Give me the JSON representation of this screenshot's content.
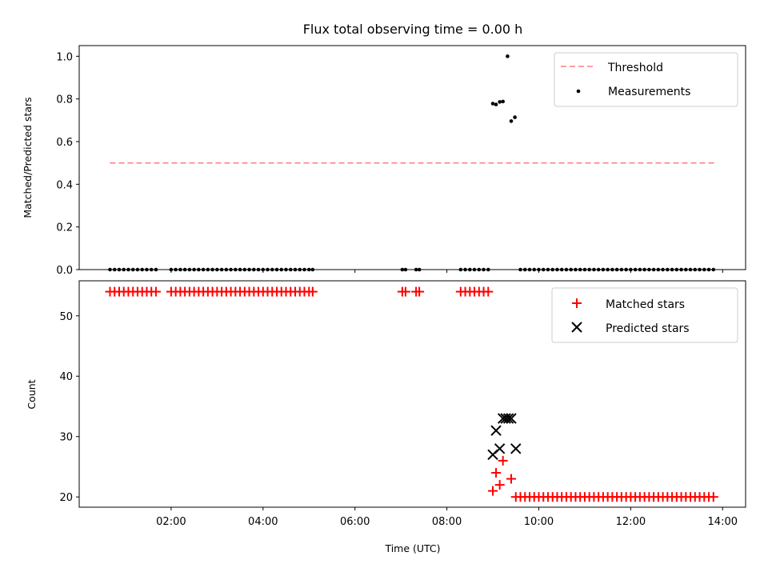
{
  "figure": {
    "title": "Flux total observing time = 0.00 h"
  },
  "chart_data": [
    {
      "type": "scatter",
      "ylabel": "Matched/Predicted stars",
      "xlim": [
        0.0,
        14.5
      ],
      "ylim": [
        0.0,
        1.05
      ],
      "yticks": [
        0.0,
        0.2,
        0.4,
        0.6,
        0.8,
        1.0
      ],
      "yticklabels": [
        "0.0",
        "0.2",
        "0.4",
        "0.6",
        "0.8",
        "1.0"
      ],
      "grid": false,
      "legend": {
        "position": "top-right",
        "entries": [
          "Threshold",
          "Measurements"
        ]
      },
      "threshold": {
        "name": "Threshold",
        "value": 0.5,
        "x_range": [
          0.67,
          13.83
        ],
        "color": "#ff8080",
        "style": "dashed"
      },
      "series": [
        {
          "name": "Measurements",
          "marker": "dot",
          "color": "#000000",
          "points": [
            [
              0.67,
              0
            ],
            [
              0.77,
              0
            ],
            [
              0.87,
              0
            ],
            [
              0.97,
              0
            ],
            [
              1.07,
              0
            ],
            [
              1.17,
              0
            ],
            [
              1.27,
              0
            ],
            [
              1.37,
              0
            ],
            [
              1.47,
              0
            ],
            [
              1.57,
              0
            ],
            [
              1.67,
              0
            ],
            [
              2.0,
              0
            ],
            [
              2.1,
              0
            ],
            [
              2.2,
              0
            ],
            [
              2.3,
              0
            ],
            [
              2.4,
              0
            ],
            [
              2.5,
              0
            ],
            [
              2.6,
              0
            ],
            [
              2.7,
              0
            ],
            [
              2.8,
              0
            ],
            [
              2.9,
              0
            ],
            [
              3.0,
              0
            ],
            [
              3.1,
              0
            ],
            [
              3.2,
              0
            ],
            [
              3.3,
              0
            ],
            [
              3.4,
              0
            ],
            [
              3.5,
              0
            ],
            [
              3.6,
              0
            ],
            [
              3.7,
              0
            ],
            [
              3.8,
              0
            ],
            [
              3.9,
              0
            ],
            [
              4.0,
              0
            ],
            [
              4.1,
              0
            ],
            [
              4.2,
              0
            ],
            [
              4.3,
              0
            ],
            [
              4.4,
              0
            ],
            [
              4.5,
              0
            ],
            [
              4.6,
              0
            ],
            [
              4.7,
              0
            ],
            [
              4.8,
              0
            ],
            [
              4.9,
              0
            ],
            [
              5.0,
              0
            ],
            [
              5.08,
              0
            ],
            [
              7.03,
              0
            ],
            [
              7.1,
              0
            ],
            [
              7.33,
              0
            ],
            [
              7.4,
              0
            ],
            [
              8.3,
              0
            ],
            [
              8.4,
              0
            ],
            [
              8.5,
              0
            ],
            [
              8.6,
              0
            ],
            [
              8.7,
              0
            ],
            [
              8.8,
              0
            ],
            [
              8.9,
              0
            ],
            [
              9.0,
              0.778
            ],
            [
              9.07,
              0.774
            ],
            [
              9.15,
              0.786
            ],
            [
              9.22,
              0.788
            ],
            [
              9.32,
              1.0
            ],
            [
              9.4,
              0.696
            ],
            [
              9.48,
              0.714
            ],
            [
              9.6,
              0
            ],
            [
              9.7,
              0
            ],
            [
              9.8,
              0
            ],
            [
              9.9,
              0
            ],
            [
              10.0,
              0
            ],
            [
              10.1,
              0
            ],
            [
              10.2,
              0
            ],
            [
              10.3,
              0
            ],
            [
              10.4,
              0
            ],
            [
              10.5,
              0
            ],
            [
              10.6,
              0
            ],
            [
              10.7,
              0
            ],
            [
              10.8,
              0
            ],
            [
              10.9,
              0
            ],
            [
              11.0,
              0
            ],
            [
              11.1,
              0
            ],
            [
              11.2,
              0
            ],
            [
              11.3,
              0
            ],
            [
              11.4,
              0
            ],
            [
              11.5,
              0
            ],
            [
              11.6,
              0
            ],
            [
              11.7,
              0
            ],
            [
              11.8,
              0
            ],
            [
              11.9,
              0
            ],
            [
              12.0,
              0
            ],
            [
              12.1,
              0
            ],
            [
              12.2,
              0
            ],
            [
              12.3,
              0
            ],
            [
              12.4,
              0
            ],
            [
              12.5,
              0
            ],
            [
              12.6,
              0
            ],
            [
              12.7,
              0
            ],
            [
              12.8,
              0
            ],
            [
              12.9,
              0
            ],
            [
              13.0,
              0
            ],
            [
              13.1,
              0
            ],
            [
              13.2,
              0
            ],
            [
              13.3,
              0
            ],
            [
              13.4,
              0
            ],
            [
              13.5,
              0
            ],
            [
              13.6,
              0
            ],
            [
              13.7,
              0
            ],
            [
              13.8,
              0
            ]
          ]
        }
      ]
    },
    {
      "type": "scatter",
      "xlabel": "Time (UTC)",
      "ylabel": "Count",
      "xlim": [
        0.0,
        14.5
      ],
      "ylim": [
        18.3,
        55.8
      ],
      "xticks": [
        2,
        4,
        6,
        8,
        10,
        12,
        14
      ],
      "xticklabels": [
        "02:00",
        "04:00",
        "06:00",
        "08:00",
        "10:00",
        "12:00",
        "14:00"
      ],
      "yticks": [
        20,
        30,
        40,
        50
      ],
      "yticklabels": [
        "20",
        "30",
        "40",
        "50"
      ],
      "grid": false,
      "legend": {
        "position": "top-right",
        "entries": [
          "Matched stars",
          "Predicted stars"
        ]
      },
      "series": [
        {
          "name": "Matched stars",
          "marker": "plus",
          "color": "#ff0000",
          "points": [
            [
              0.67,
              54
            ],
            [
              0.77,
              54
            ],
            [
              0.87,
              54
            ],
            [
              0.97,
              54
            ],
            [
              1.07,
              54
            ],
            [
              1.17,
              54
            ],
            [
              1.27,
              54
            ],
            [
              1.37,
              54
            ],
            [
              1.47,
              54
            ],
            [
              1.57,
              54
            ],
            [
              1.67,
              54
            ],
            [
              2.0,
              54
            ],
            [
              2.1,
              54
            ],
            [
              2.2,
              54
            ],
            [
              2.3,
              54
            ],
            [
              2.4,
              54
            ],
            [
              2.5,
              54
            ],
            [
              2.6,
              54
            ],
            [
              2.7,
              54
            ],
            [
              2.8,
              54
            ],
            [
              2.9,
              54
            ],
            [
              3.0,
              54
            ],
            [
              3.1,
              54
            ],
            [
              3.2,
              54
            ],
            [
              3.3,
              54
            ],
            [
              3.4,
              54
            ],
            [
              3.5,
              54
            ],
            [
              3.6,
              54
            ],
            [
              3.7,
              54
            ],
            [
              3.8,
              54
            ],
            [
              3.9,
              54
            ],
            [
              4.0,
              54
            ],
            [
              4.1,
              54
            ],
            [
              4.2,
              54
            ],
            [
              4.3,
              54
            ],
            [
              4.4,
              54
            ],
            [
              4.5,
              54
            ],
            [
              4.6,
              54
            ],
            [
              4.7,
              54
            ],
            [
              4.8,
              54
            ],
            [
              4.9,
              54
            ],
            [
              5.0,
              54
            ],
            [
              5.08,
              54
            ],
            [
              7.03,
              54
            ],
            [
              7.1,
              54
            ],
            [
              7.33,
              54
            ],
            [
              7.4,
              54
            ],
            [
              8.3,
              54
            ],
            [
              8.4,
              54
            ],
            [
              8.5,
              54
            ],
            [
              8.6,
              54
            ],
            [
              8.7,
              54
            ],
            [
              8.8,
              54
            ],
            [
              8.9,
              54
            ],
            [
              9.0,
              21
            ],
            [
              9.07,
              24
            ],
            [
              9.15,
              22
            ],
            [
              9.22,
              26
            ],
            [
              9.4,
              23
            ],
            [
              9.5,
              20
            ],
            [
              9.6,
              20
            ],
            [
              9.7,
              20
            ],
            [
              9.8,
              20
            ],
            [
              9.9,
              20
            ],
            [
              10.0,
              20
            ],
            [
              10.1,
              20
            ],
            [
              10.2,
              20
            ],
            [
              10.3,
              20
            ],
            [
              10.4,
              20
            ],
            [
              10.5,
              20
            ],
            [
              10.6,
              20
            ],
            [
              10.7,
              20
            ],
            [
              10.8,
              20
            ],
            [
              10.9,
              20
            ],
            [
              11.0,
              20
            ],
            [
              11.1,
              20
            ],
            [
              11.2,
              20
            ],
            [
              11.3,
              20
            ],
            [
              11.4,
              20
            ],
            [
              11.5,
              20
            ],
            [
              11.6,
              20
            ],
            [
              11.7,
              20
            ],
            [
              11.8,
              20
            ],
            [
              11.9,
              20
            ],
            [
              12.0,
              20
            ],
            [
              12.1,
              20
            ],
            [
              12.2,
              20
            ],
            [
              12.3,
              20
            ],
            [
              12.4,
              20
            ],
            [
              12.5,
              20
            ],
            [
              12.6,
              20
            ],
            [
              12.7,
              20
            ],
            [
              12.8,
              20
            ],
            [
              12.9,
              20
            ],
            [
              13.0,
              20
            ],
            [
              13.1,
              20
            ],
            [
              13.2,
              20
            ],
            [
              13.3,
              20
            ],
            [
              13.4,
              20
            ],
            [
              13.5,
              20
            ],
            [
              13.6,
              20
            ],
            [
              13.7,
              20
            ],
            [
              13.8,
              20
            ]
          ]
        },
        {
          "name": "Predicted stars",
          "marker": "x",
          "color": "#000000",
          "points": [
            [
              9.0,
              27
            ],
            [
              9.07,
              31
            ],
            [
              9.15,
              28
            ],
            [
              9.22,
              33
            ],
            [
              9.28,
              33
            ],
            [
              9.34,
              33
            ],
            [
              9.4,
              33
            ],
            [
              9.5,
              28
            ]
          ]
        }
      ]
    }
  ]
}
